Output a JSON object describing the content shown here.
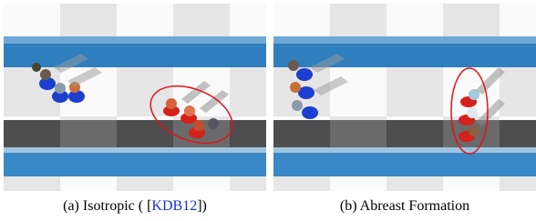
{
  "figures": [
    {
      "caption": {
        "label": "(a) Isotropic ( [",
        "citation": "KDB12",
        "suffix": "])"
      }
    },
    {
      "caption": {
        "label": "(b) Abreast Formation"
      }
    }
  ]
}
